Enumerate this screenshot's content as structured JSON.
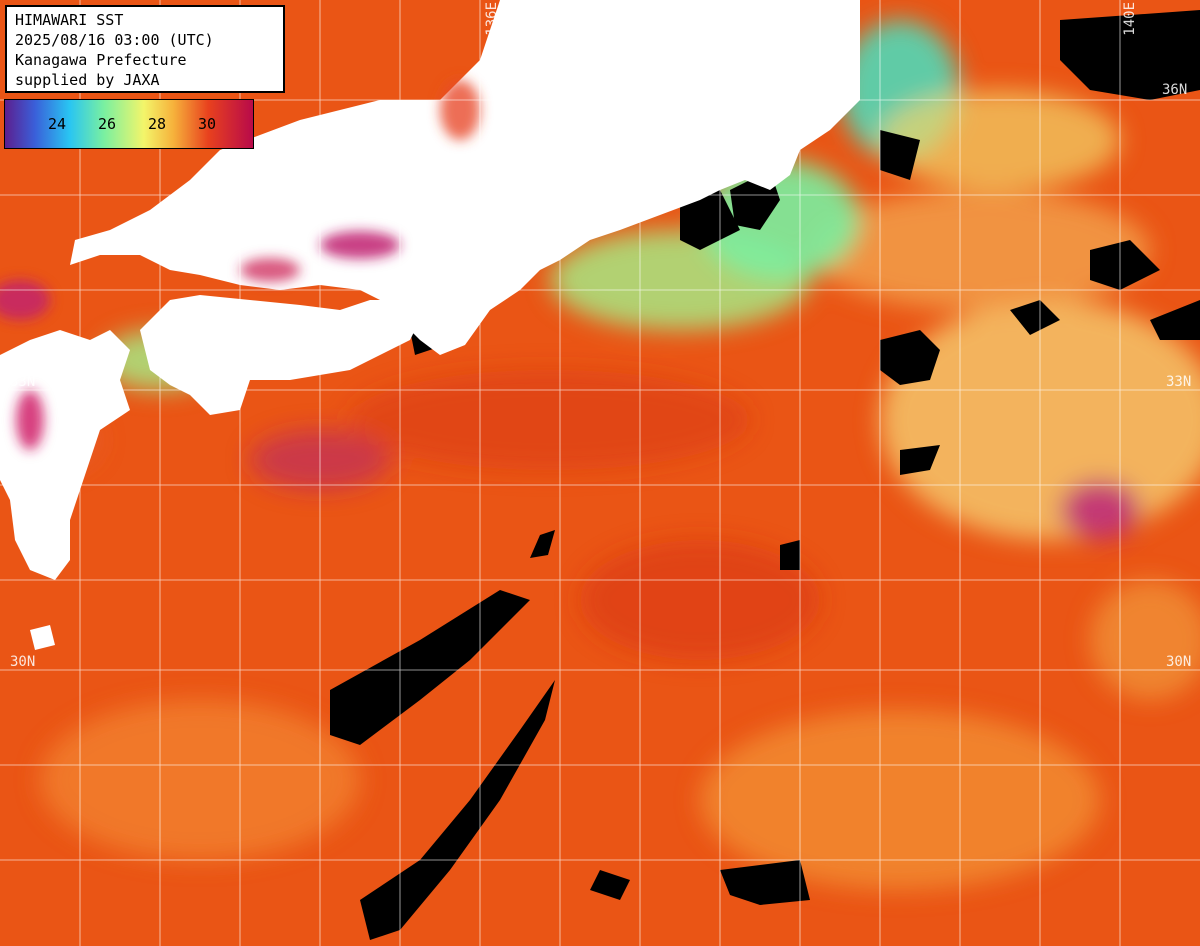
{
  "header": {
    "line1": "HIMAWARI SST",
    "line2": "2025/08/16 03:00 (UTC)",
    "line3": "Kanagawa Prefecture",
    "line4": "supplied by JAXA"
  },
  "legend": {
    "ticks": [
      "24",
      "26",
      "28",
      "30"
    ]
  },
  "grid_labels": {
    "lon_left": "136E",
    "lon_right": "140E",
    "lat_36": "36N",
    "lat_33_left": "33N",
    "lat_33_right": "33N",
    "lat_30_left": "30N",
    "lat_30_right": "30N"
  },
  "colors": {
    "land": "#ffffff",
    "cloud": "#000000",
    "warm_sea": "#e84a12",
    "cool_sea": "#7af0a0",
    "hot_sea": "#b80a4a",
    "grid": "#ffffff"
  }
}
